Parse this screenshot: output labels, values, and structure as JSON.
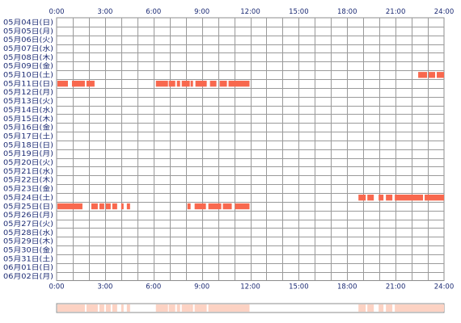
{
  "chart_data": {
    "type": "timeline",
    "x_unit": "hour",
    "xlim": [
      0,
      24
    ],
    "x_ticks": [
      "0:00",
      "3:00",
      "6:00",
      "9:00",
      "12:00",
      "15:00",
      "18:00",
      "21:00",
      "24:00"
    ],
    "days": [
      "05月04日(日)",
      "05月05日(月)",
      "05月06日(火)",
      "05月07日(水)",
      "05月08日(木)",
      "05月09日(金)",
      "05月10日(土)",
      "05月11日(日)",
      "05月12日(月)",
      "05月13日(火)",
      "05月14日(水)",
      "05月15日(木)",
      "05月16日(金)",
      "05月17日(土)",
      "05月18日(日)",
      "05月19日(月)",
      "05月20日(火)",
      "05月21日(水)",
      "05月22日(木)",
      "05月23日(金)",
      "05月24日(土)",
      "05月25日(日)",
      "05月26日(月)",
      "05月27日(火)",
      "05月28日(水)",
      "05月29日(木)",
      "05月30日(金)",
      "05月31日(土)",
      "06月01日(日)",
      "06月02日(月)"
    ],
    "bar_color": "#f8684e",
    "summary_color": "#fcd2c3",
    "grid": true,
    "segments": [
      {
        "day": 6,
        "start": 22.4,
        "end": 22.95
      },
      {
        "day": 6,
        "start": 23.05,
        "end": 23.45
      },
      {
        "day": 6,
        "start": 23.55,
        "end": 24.0
      },
      {
        "day": 7,
        "start": 0.05,
        "end": 0.7
      },
      {
        "day": 7,
        "start": 0.95,
        "end": 1.15
      },
      {
        "day": 7,
        "start": 1.05,
        "end": 1.75
      },
      {
        "day": 7,
        "start": 1.85,
        "end": 2.35
      },
      {
        "day": 7,
        "start": 6.15,
        "end": 6.9
      },
      {
        "day": 7,
        "start": 6.95,
        "end": 7.35
      },
      {
        "day": 7,
        "start": 7.45,
        "end": 7.65
      },
      {
        "day": 7,
        "start": 7.75,
        "end": 8.25
      },
      {
        "day": 7,
        "start": 8.3,
        "end": 8.45
      },
      {
        "day": 7,
        "start": 8.6,
        "end": 9.3
      },
      {
        "day": 7,
        "start": 9.5,
        "end": 9.9
      },
      {
        "day": 7,
        "start": 10.1,
        "end": 10.55
      },
      {
        "day": 7,
        "start": 10.65,
        "end": 11.95
      },
      {
        "day": 20,
        "start": 18.7,
        "end": 19.15
      },
      {
        "day": 20,
        "start": 19.25,
        "end": 19.65
      },
      {
        "day": 20,
        "start": 19.95,
        "end": 20.25
      },
      {
        "day": 20,
        "start": 20.4,
        "end": 20.8
      },
      {
        "day": 20,
        "start": 20.95,
        "end": 22.7
      },
      {
        "day": 20,
        "start": 22.8,
        "end": 24.0
      },
      {
        "day": 21,
        "start": 0.05,
        "end": 1.6
      },
      {
        "day": 21,
        "start": 2.15,
        "end": 2.55
      },
      {
        "day": 21,
        "start": 2.65,
        "end": 2.95
      },
      {
        "day": 21,
        "start": 3.05,
        "end": 3.35
      },
      {
        "day": 21,
        "start": 3.45,
        "end": 3.75
      },
      {
        "day": 21,
        "start": 4.0,
        "end": 4.15
      },
      {
        "day": 21,
        "start": 4.35,
        "end": 4.55
      },
      {
        "day": 21,
        "start": 8.1,
        "end": 8.3
      },
      {
        "day": 21,
        "start": 8.55,
        "end": 9.25
      },
      {
        "day": 21,
        "start": 9.4,
        "end": 10.2
      },
      {
        "day": 21,
        "start": 10.3,
        "end": 10.85
      },
      {
        "day": 21,
        "start": 11.05,
        "end": 11.95
      }
    ]
  }
}
